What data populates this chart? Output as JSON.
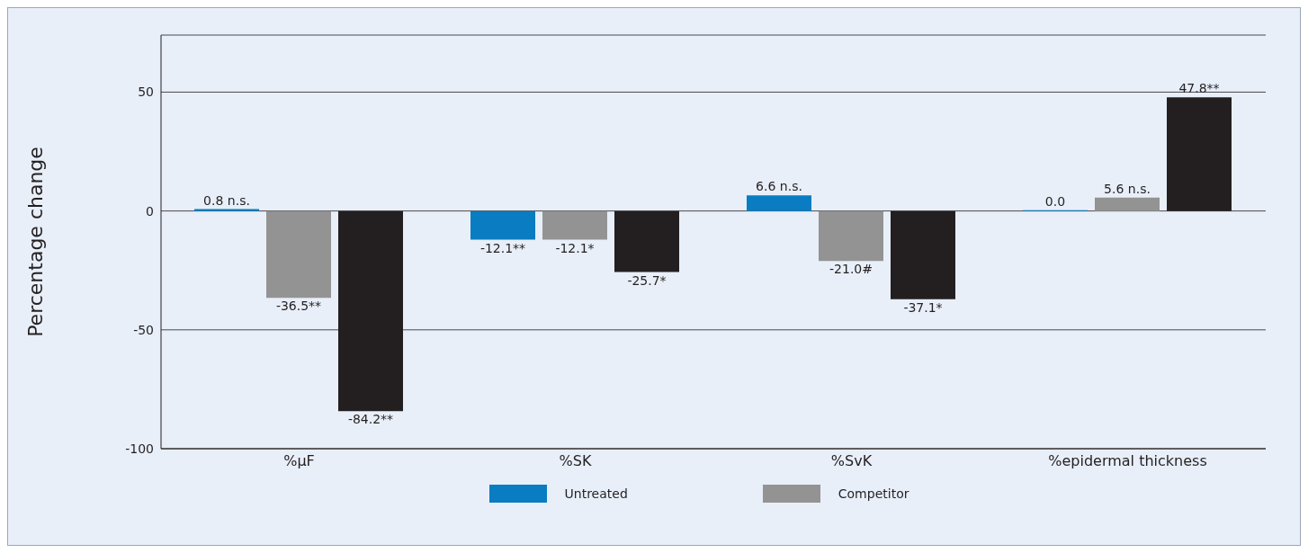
{
  "chart_data": {
    "type": "bar",
    "ylabel": "Percentage change",
    "categories": [
      "%µF",
      "%SK",
      "%SvK",
      "%epidermal thickness"
    ],
    "series": [
      {
        "name": "Untreated",
        "color": "#0a7cc1",
        "values": [
          0.8,
          -12.1,
          6.6,
          0.0
        ],
        "value_labels": [
          "0.8 n.s.",
          "-12.1**",
          "6.6 n.s.",
          "0.0"
        ]
      },
      {
        "name": "Competitor",
        "color": "#939393",
        "values": [
          -36.5,
          -12.1,
          -21.0,
          5.6
        ],
        "value_labels": [
          "-36.5**",
          "-12.1*",
          "-21.0#",
          "5.6 n.s."
        ]
      },
      {
        "color": "#231f20",
        "values": [
          -84.2,
          -25.7,
          -37.1,
          47.8
        ],
        "value_labels": [
          "-84.2**",
          "-25.7*",
          "-37.1*",
          "47.8**"
        ]
      }
    ],
    "ylim": [
      -100,
      74
    ],
    "yticks": [
      -100,
      -50,
      0,
      50
    ],
    "grid": "y",
    "legend": "bottom"
  }
}
